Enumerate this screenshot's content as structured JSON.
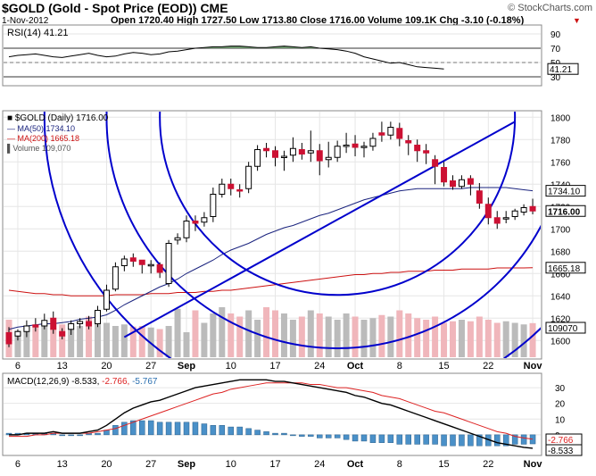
{
  "header": {
    "symbol_line": "$GOLD (Gold - Spot Price (EOD)) CME",
    "copyright": "© StockCharts.com",
    "date": "1-Nov-2012",
    "quote": "Open 1720.40  High 1727.50  Low 1713.80  Close 1716.00  Volume 109.1K  Chg -3.10 (-0.18%)",
    "quote_arrow": "▼"
  },
  "colors": {
    "up_candle": "#ffffff",
    "down_candle": "#cc1133",
    "ma50": "#1a237e",
    "ma200": "#cc1111",
    "fan_lines": "#0000cc",
    "volume_up": "#bbbbbb",
    "volume_down": "#f0b6bb",
    "macd_line": "#000000",
    "signal_line": "#dd2222",
    "histogram": "#4a90c8",
    "rsi_fill": "#6f9a6f",
    "grid": "#e6e6e6"
  },
  "chart_data": [
    {
      "type": "line",
      "panel": "rsi",
      "title": "RSI(14) 41.21",
      "y_ticks": [
        90,
        70,
        50,
        30
      ],
      "ylim": [
        20,
        100
      ],
      "reference_lines": [
        70,
        30
      ],
      "last_value_label": "41.21",
      "values": [
        58,
        60,
        61,
        62,
        60,
        58,
        57,
        59,
        61,
        63,
        60,
        58,
        59,
        62,
        64,
        63,
        61,
        62,
        65,
        66,
        68,
        70,
        71,
        72,
        72,
        73,
        73,
        72,
        71,
        71,
        72,
        73,
        72,
        71,
        72,
        70,
        69,
        68,
        66,
        63,
        58,
        55,
        52,
        49,
        50,
        47,
        44,
        43,
        42,
        41
      ]
    },
    {
      "type": "candlestick",
      "panel": "price",
      "title": "$GOLD (Daily) 1716.00",
      "ylim": [
        1585,
        1805
      ],
      "y_ticks": [
        1800,
        1780,
        1760,
        1740,
        1720,
        1700,
        1680,
        1660,
        1640,
        1620,
        1600
      ],
      "x_ticks": [
        "6",
        "13",
        "20",
        "27",
        "Sep",
        "10",
        "17",
        "24",
        "Oct",
        "8",
        "15",
        "22",
        "Nov"
      ],
      "legend": [
        {
          "name": "$GOLD (Daily) 1716.00"
        },
        {
          "name": "MA(50) 1734.10"
        },
        {
          "name": "MA(200) 1665.18"
        },
        {
          "name": "Volume 109,070"
        }
      ],
      "price_labels": [
        "1734.10",
        "1716.00",
        "1665.18",
        "109070"
      ],
      "candles": {
        "open": [
          1607,
          1604,
          1608,
          1614,
          1613,
          1620,
          1608,
          1610,
          1615,
          1617,
          1615,
          1628,
          1646,
          1667,
          1674,
          1672,
          1667,
          1668,
          1651,
          1690,
          1692,
          1707,
          1706,
          1711,
          1731,
          1740,
          1735,
          1736,
          1756,
          1772,
          1770,
          1764,
          1766,
          1771,
          1768,
          1770,
          1762,
          1764,
          1774,
          1776,
          1774,
          1774,
          1786,
          1784,
          1790,
          1779,
          1775,
          1770,
          1762,
          1755,
          1743,
          1738,
          1745,
          1734,
          1722,
          1710,
          1710,
          1711,
          1715,
          1720
        ],
        "close": [
          1597,
          1608,
          1613,
          1612,
          1618,
          1610,
          1604,
          1615,
          1617,
          1613,
          1627,
          1645,
          1666,
          1673,
          1671,
          1668,
          1668,
          1661,
          1687,
          1692,
          1707,
          1705,
          1710,
          1731,
          1740,
          1736,
          1734,
          1756,
          1771,
          1770,
          1764,
          1765,
          1772,
          1767,
          1770,
          1761,
          1764,
          1774,
          1775,
          1773,
          1774,
          1781,
          1784,
          1791,
          1781,
          1777,
          1770,
          1768,
          1756,
          1742,
          1738,
          1744,
          1740,
          1723,
          1710,
          1705,
          1710,
          1716,
          1719,
          1716
        ],
        "high": [
          1612,
          1610,
          1618,
          1620,
          1624,
          1626,
          1611,
          1618,
          1620,
          1622,
          1631,
          1650,
          1670,
          1676,
          1678,
          1672,
          1672,
          1670,
          1690,
          1696,
          1712,
          1712,
          1715,
          1737,
          1745,
          1745,
          1740,
          1760,
          1775,
          1777,
          1774,
          1770,
          1782,
          1777,
          1788,
          1776,
          1778,
          1779,
          1786,
          1784,
          1778,
          1786,
          1796,
          1796,
          1795,
          1784,
          1780,
          1776,
          1766,
          1760,
          1748,
          1748,
          1748,
          1741,
          1728,
          1716,
          1716,
          1718,
          1722,
          1727
        ],
        "low": [
          1594,
          1600,
          1603,
          1608,
          1610,
          1606,
          1601,
          1605,
          1611,
          1610,
          1612,
          1626,
          1644,
          1662,
          1666,
          1660,
          1660,
          1656,
          1648,
          1686,
          1688,
          1698,
          1702,
          1706,
          1728,
          1730,
          1728,
          1732,
          1752,
          1764,
          1756,
          1752,
          1760,
          1762,
          1760,
          1748,
          1755,
          1760,
          1768,
          1765,
          1764,
          1770,
          1778,
          1780,
          1774,
          1766,
          1760,
          1758,
          1740,
          1738,
          1735,
          1736,
          1730,
          1718,
          1704,
          1700,
          1705,
          1708,
          1712,
          1713
        ]
      },
      "ma50": [
        1610,
        1612,
        1613,
        1614,
        1615,
        1615,
        1616,
        1617,
        1619,
        1620,
        1621,
        1623,
        1627,
        1632,
        1636,
        1640,
        1644,
        1648,
        1651,
        1655,
        1660,
        1664,
        1668,
        1672,
        1677,
        1681,
        1684,
        1687,
        1691,
        1695,
        1698,
        1701,
        1703,
        1706,
        1709,
        1712,
        1714,
        1717,
        1720,
        1723,
        1726,
        1728,
        1730,
        1732,
        1734,
        1735,
        1736,
        1736,
        1736,
        1736,
        1736,
        1736,
        1737,
        1737,
        1737,
        1737,
        1737,
        1736,
        1735,
        1734.1
      ],
      "ma200": [
        1645,
        1644,
        1643,
        1642,
        1642,
        1641,
        1641,
        1640,
        1640,
        1640,
        1640,
        1640,
        1641,
        1641,
        1641,
        1641,
        1642,
        1642,
        1642,
        1643,
        1643,
        1643,
        1644,
        1644,
        1645,
        1645,
        1646,
        1647,
        1648,
        1649,
        1650,
        1651,
        1652,
        1653,
        1654,
        1655,
        1656,
        1657,
        1658,
        1659,
        1659,
        1660,
        1660,
        1661,
        1661,
        1662,
        1662,
        1662,
        1663,
        1663,
        1663,
        1664,
        1664,
        1664,
        1664,
        1665,
        1665,
        1665,
        1665,
        1665.18
      ],
      "volume": [
        120000,
        85000,
        100000,
        95000,
        110000,
        90000,
        105000,
        95000,
        100000,
        130000,
        120000,
        110000,
        100000,
        105000,
        98000,
        100000,
        95000,
        90000,
        100000,
        155000,
        80000,
        150000,
        110000,
        140000,
        160000,
        140000,
        130000,
        150000,
        120000,
        160000,
        150000,
        140000,
        120000,
        130000,
        150000,
        140000,
        130000,
        120000,
        140000,
        130000,
        120000,
        125000,
        135000,
        130000,
        150000,
        140000,
        125000,
        120000,
        130000,
        110000,
        115000,
        120000,
        115000,
        130000,
        120000,
        110000,
        115000,
        110000,
        105000,
        109070
      ],
      "trendline": {
        "from": {
          "x": 13,
          "y": 1603
        },
        "to": {
          "x": 57,
          "y": 1796
        }
      },
      "fan_arcs": [
        {
          "center_x": 37,
          "center_y": 1800,
          "radius_units": 20
        },
        {
          "center_x": 37,
          "center_y": 1800,
          "radius_units": 26
        },
        {
          "center_x": 37,
          "center_y": 1800,
          "radius_units": 33
        }
      ]
    },
    {
      "type": "line",
      "panel": "macd",
      "title": "MACD(12,26,9) -8.533, -2.766, -5.767",
      "ylim": [
        -12,
        38
      ],
      "y_ticks": [
        30,
        20,
        10,
        0
      ],
      "legend": [
        {
          "name": "MACD(12,26,9)"
        },
        {
          "name": "-8.533"
        },
        {
          "name": "-2.766"
        },
        {
          "name": "-5.767"
        }
      ],
      "last_value_labels": [
        "-2.766",
        "-8.533"
      ],
      "macd": [
        0,
        0,
        1,
        1,
        1,
        2,
        1,
        1,
        1,
        2,
        3,
        6,
        10,
        14,
        17,
        19,
        21,
        22,
        24,
        26,
        28,
        30,
        31,
        32,
        33,
        34,
        35,
        35,
        35,
        35,
        34,
        34,
        33,
        32,
        31,
        30,
        29,
        28,
        27,
        25,
        24,
        22,
        20,
        19,
        17,
        15,
        13,
        11,
        9,
        7,
        5,
        3,
        1,
        -1,
        -3,
        -5,
        -6,
        -7,
        -8,
        -8.533
      ],
      "signal": [
        -1,
        -1,
        -1,
        0,
        0,
        1,
        1,
        1,
        1,
        1,
        2,
        3,
        4,
        6,
        8,
        10,
        12,
        14,
        16,
        18,
        20,
        22,
        24,
        26,
        27,
        29,
        30,
        31,
        32,
        33,
        33,
        33,
        33,
        33,
        32,
        32,
        31,
        30,
        30,
        29,
        28,
        27,
        25,
        24,
        23,
        21,
        19,
        17,
        15,
        14,
        12,
        10,
        8,
        6,
        4,
        2,
        1,
        -1,
        -2,
        -2.766
      ],
      "histogram": [
        1,
        1,
        1,
        1,
        1,
        1,
        0,
        0,
        0,
        1,
        1,
        3,
        6,
        8,
        9,
        9,
        9,
        8,
        8,
        8,
        8,
        8,
        7,
        6,
        6,
        5,
        5,
        4,
        3,
        2,
        1,
        1,
        0,
        -1,
        -1,
        -2,
        -2,
        -2,
        -3,
        -4,
        -4,
        -5,
        -5,
        -5,
        -6,
        -6,
        -6,
        -6,
        -6,
        -7,
        -7,
        -7,
        -7,
        -7,
        -7,
        -7,
        -7,
        -6,
        -6,
        -5.767
      ]
    }
  ]
}
